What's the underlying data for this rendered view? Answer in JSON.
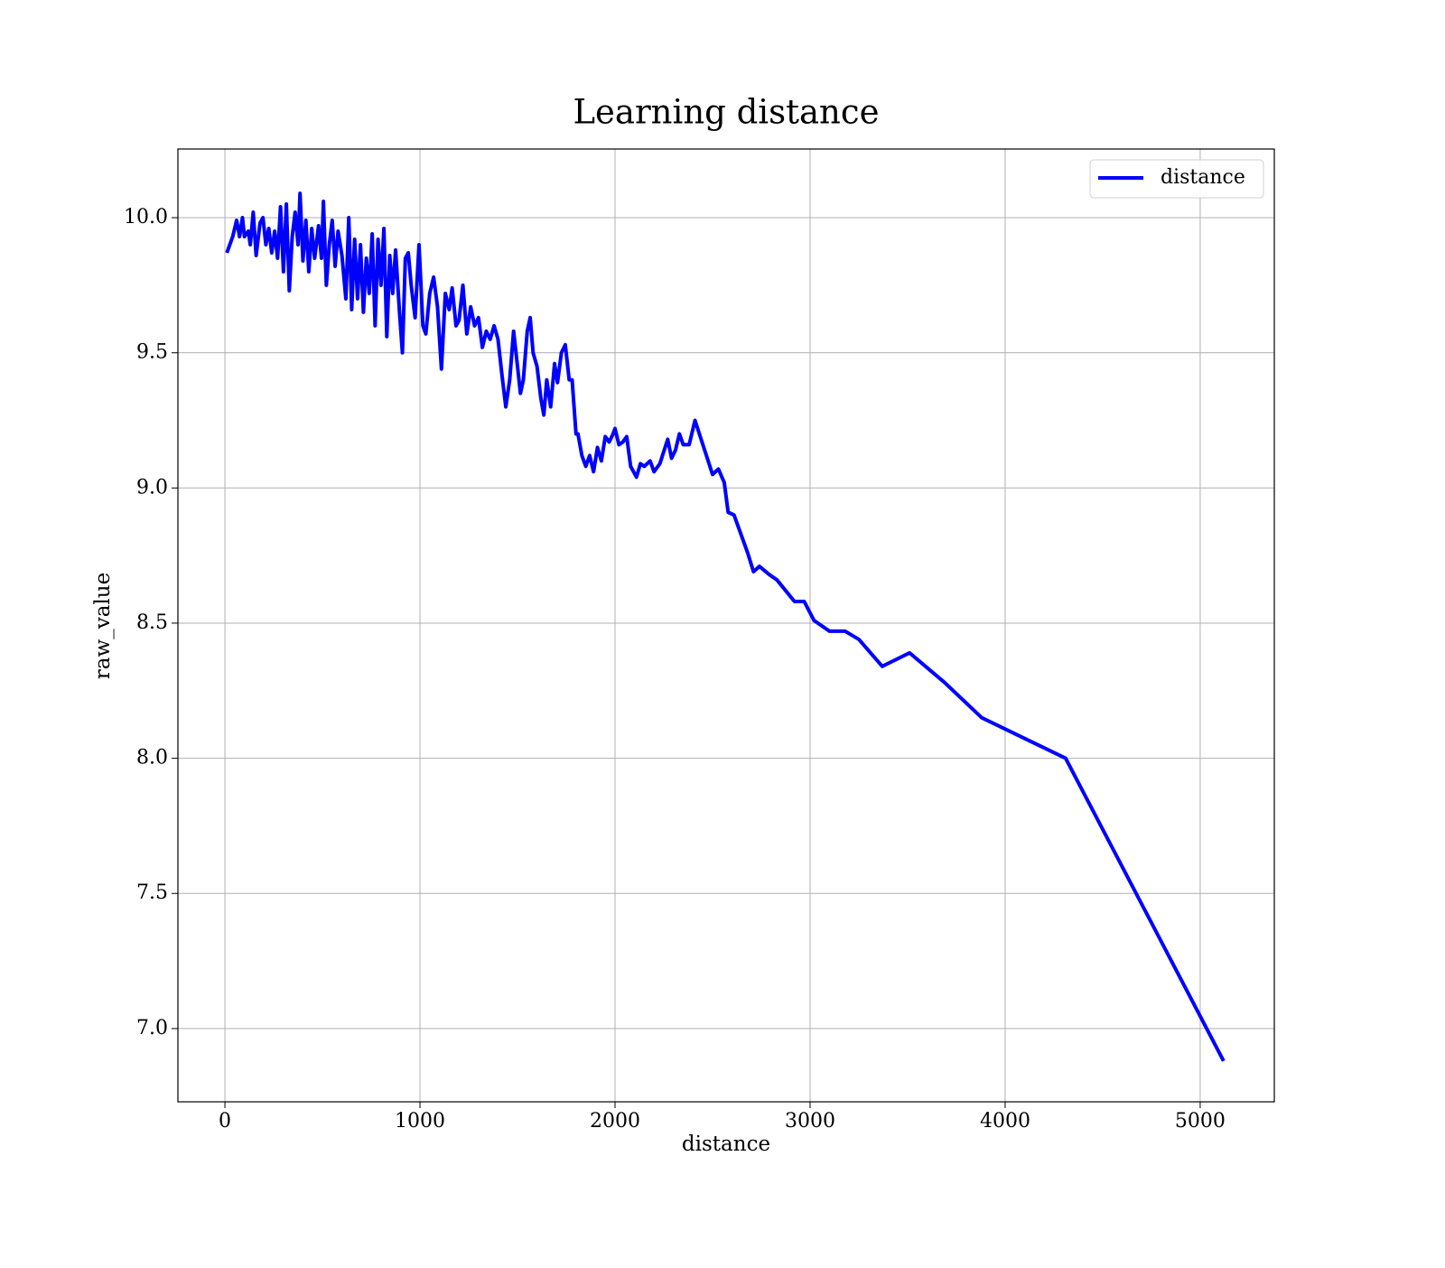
{
  "chart_data": {
    "type": "line",
    "title": "Learning distance",
    "xlabel": "distance",
    "ylabel": "raw_value",
    "x": [
      10,
      40,
      60,
      75,
      90,
      100,
      120,
      130,
      145,
      160,
      180,
      195,
      210,
      225,
      240,
      255,
      270,
      285,
      300,
      315,
      330,
      345,
      360,
      375,
      385,
      400,
      415,
      430,
      445,
      460,
      480,
      495,
      505,
      520,
      535,
      550,
      565,
      580,
      600,
      620,
      635,
      650,
      665,
      680,
      695,
      710,
      725,
      740,
      755,
      770,
      785,
      800,
      815,
      830,
      845,
      860,
      875,
      895,
      910,
      925,
      940,
      955,
      975,
      995,
      1015,
      1030,
      1050,
      1070,
      1090,
      1110,
      1130,
      1150,
      1165,
      1185,
      1200,
      1220,
      1240,
      1260,
      1280,
      1300,
      1320,
      1340,
      1360,
      1380,
      1400,
      1420,
      1440,
      1460,
      1480,
      1500,
      1515,
      1530,
      1550,
      1565,
      1580,
      1600,
      1620,
      1635,
      1650,
      1670,
      1690,
      1705,
      1725,
      1745,
      1765,
      1780,
      1800,
      1810,
      1830,
      1850,
      1870,
      1890,
      1910,
      1930,
      1950,
      1970,
      1990,
      2000,
      2020,
      2040,
      2060,
      2080,
      2110,
      2130,
      2150,
      2180,
      2200,
      2230,
      2270,
      2290,
      2310,
      2330,
      2350,
      2380,
      2410,
      2500,
      2530,
      2560,
      2580,
      2610,
      2640,
      2680,
      2710,
      2740,
      2790,
      2830,
      2920,
      2970,
      3020,
      3100,
      3180,
      3250,
      3370,
      3510,
      3690,
      3880,
      4310,
      5120
    ],
    "series": [
      {
        "name": "distance",
        "color": "#0000ff",
        "values": [
          9.87,
          9.93,
          9.99,
          9.93,
          10.0,
          9.93,
          9.95,
          9.9,
          10.02,
          9.86,
          9.98,
          10.0,
          9.9,
          9.96,
          9.87,
          9.95,
          9.85,
          10.04,
          9.8,
          10.05,
          9.73,
          9.93,
          10.02,
          9.9,
          10.09,
          9.84,
          9.99,
          9.8,
          9.96,
          9.85,
          9.97,
          9.85,
          10.06,
          9.75,
          9.9,
          9.99,
          9.82,
          9.95,
          9.86,
          9.7,
          10.0,
          9.66,
          9.92,
          9.7,
          9.9,
          9.65,
          9.85,
          9.72,
          9.94,
          9.6,
          9.92,
          9.75,
          9.96,
          9.56,
          9.86,
          9.72,
          9.88,
          9.65,
          9.5,
          9.85,
          9.87,
          9.75,
          9.63,
          9.9,
          9.6,
          9.57,
          9.72,
          9.78,
          9.67,
          9.44,
          9.72,
          9.66,
          9.74,
          9.6,
          9.62,
          9.75,
          9.57,
          9.67,
          9.6,
          9.63,
          9.52,
          9.58,
          9.55,
          9.6,
          9.55,
          9.42,
          9.3,
          9.4,
          9.58,
          9.45,
          9.35,
          9.4,
          9.58,
          9.63,
          9.5,
          9.45,
          9.33,
          9.27,
          9.4,
          9.3,
          9.46,
          9.39,
          9.5,
          9.53,
          9.4,
          9.4,
          9.2,
          9.2,
          9.12,
          9.08,
          9.12,
          9.06,
          9.15,
          9.1,
          9.19,
          9.17,
          9.2,
          9.22,
          9.16,
          9.17,
          9.19,
          9.08,
          9.04,
          9.09,
          9.08,
          9.1,
          9.06,
          9.09,
          9.18,
          9.11,
          9.14,
          9.2,
          9.16,
          9.16,
          9.25,
          9.05,
          9.07,
          9.02,
          8.91,
          8.9,
          8.84,
          8.76,
          8.69,
          8.71,
          8.68,
          8.66,
          8.58,
          8.58,
          8.51,
          8.47,
          8.47,
          8.44,
          8.34,
          8.39,
          8.28,
          8.15,
          8.0,
          6.88
        ]
      }
    ],
    "xlim": [
      -241,
      5380
    ],
    "ylim": [
      6.729,
      10.254
    ],
    "xticks": [
      0,
      1000,
      2000,
      3000,
      4000,
      5000
    ],
    "yticks": [
      {
        "value": 7,
        "label": "7.0"
      },
      {
        "value": 7.5,
        "label": "7.5"
      },
      {
        "value": 8,
        "label": "8.0"
      },
      {
        "value": 8.5,
        "label": "8.5"
      },
      {
        "value": 9,
        "label": "9.0"
      },
      {
        "value": 9.5,
        "label": "9.5"
      },
      {
        "value": 10,
        "label": "10.0"
      }
    ],
    "grid": true,
    "legend": "upper right"
  }
}
